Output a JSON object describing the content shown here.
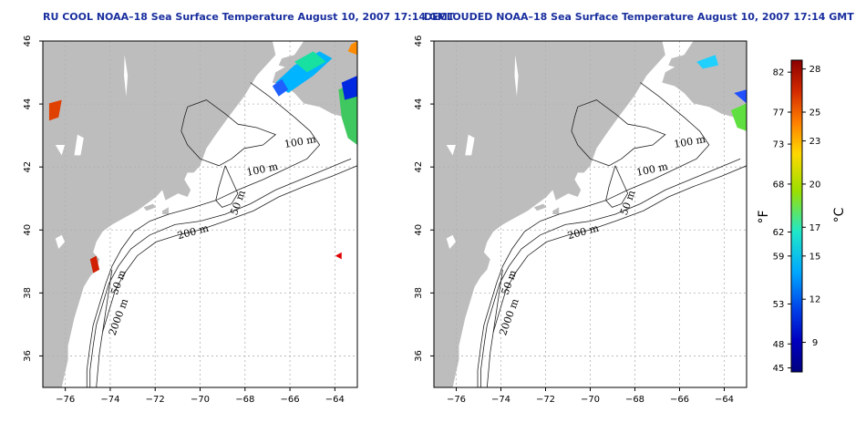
{
  "panels": [
    {
      "title": "RU COOL NOAA–18 Sea Surface Temperature August 10, 2007 17:14 GMT"
    },
    {
      "title": "DECLOUDED NOAA–18 Sea Surface Temperature August 10, 2007 17:14 GMT"
    }
  ],
  "map": {
    "lon_range": [
      -77,
      -63
    ],
    "lat_range": [
      35,
      46
    ],
    "lon_ticks": [
      "−76",
      "−74",
      "−72",
      "−70",
      "−68",
      "−66",
      "−64"
    ],
    "lat_ticks": [
      "36",
      "38",
      "40",
      "42",
      "44",
      "46"
    ],
    "contour_labels": [
      "100 m",
      "100 m",
      "50 m",
      "200 m",
      "50 m",
      "2000 m"
    ],
    "land_color": "#bdbdbd",
    "ocean_color": "#ffffff"
  },
  "colorbar": {
    "fahrenheit_label": "°F",
    "celsius_label": "°C",
    "fahrenheit_ticks": [
      "82",
      "77",
      "73",
      "68",
      "62",
      "59",
      "53",
      "48",
      "45"
    ],
    "celsius_ticks": [
      "28",
      "25",
      "23",
      "20",
      "17",
      "15",
      "12",
      "9"
    ],
    "gradient": [
      "#8b0000",
      "#d42a00",
      "#ff8000",
      "#ffd800",
      "#9be000",
      "#20e8c8",
      "#00a8ff",
      "#0040e8",
      "#0000c0",
      "#000080"
    ]
  }
}
